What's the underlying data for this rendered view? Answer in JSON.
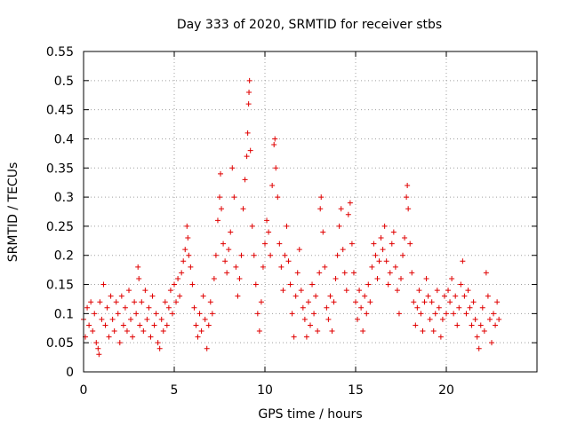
{
  "chart_data": {
    "type": "scatter",
    "title": "Day 333 of 2020, SRMTID for receiver stbs",
    "xlabel": "GPS time / hours",
    "ylabel": "SRMTID / TECUs",
    "xlim": [
      0,
      25
    ],
    "ylim": [
      0,
      0.55
    ],
    "xticks": [
      0,
      5,
      10,
      15,
      20
    ],
    "xtick_labels": [
      "0",
      "5",
      "10",
      "15",
      "20"
    ],
    "yticks": [
      0,
      0.05,
      0.1,
      0.15,
      0.2,
      0.25,
      0.3,
      0.35,
      0.4,
      0.45,
      0.5,
      0.55
    ],
    "ytick_labels": [
      "0",
      "0.05",
      "0.1",
      "0.15",
      "0.2",
      "0.25",
      "0.3",
      "0.35",
      "0.4",
      "0.45",
      "0.5",
      "0.55"
    ],
    "grid": true,
    "marker": "+",
    "marker_color": "#e00000",
    "series": [
      {
        "name": "SRMTID",
        "points": [
          [
            0.0,
            0.09
          ],
          [
            0.1,
            0.06
          ],
          [
            0.2,
            0.11
          ],
          [
            0.3,
            0.08
          ],
          [
            0.4,
            0.12
          ],
          [
            0.5,
            0.07
          ],
          [
            0.6,
            0.1
          ],
          [
            0.7,
            0.05
          ],
          [
            0.8,
            0.04
          ],
          [
            0.85,
            0.03
          ],
          [
            0.9,
            0.12
          ],
          [
            1.0,
            0.09
          ],
          [
            1.1,
            0.15
          ],
          [
            1.2,
            0.08
          ],
          [
            1.3,
            0.11
          ],
          [
            1.4,
            0.06
          ],
          [
            1.5,
            0.13
          ],
          [
            1.6,
            0.09
          ],
          [
            1.7,
            0.07
          ],
          [
            1.8,
            0.12
          ],
          [
            1.9,
            0.1
          ],
          [
            2.0,
            0.05
          ],
          [
            2.1,
            0.13
          ],
          [
            2.2,
            0.08
          ],
          [
            2.3,
            0.11
          ],
          [
            2.4,
            0.07
          ],
          [
            2.5,
            0.14
          ],
          [
            2.6,
            0.09
          ],
          [
            2.7,
            0.06
          ],
          [
            2.8,
            0.12
          ],
          [
            2.9,
            0.1
          ],
          [
            3.0,
            0.18
          ],
          [
            3.05,
            0.16
          ],
          [
            3.1,
            0.08
          ],
          [
            3.2,
            0.12
          ],
          [
            3.3,
            0.07
          ],
          [
            3.4,
            0.14
          ],
          [
            3.5,
            0.09
          ],
          [
            3.6,
            0.11
          ],
          [
            3.7,
            0.06
          ],
          [
            3.8,
            0.13
          ],
          [
            3.9,
            0.08
          ],
          [
            4.0,
            0.1
          ],
          [
            4.1,
            0.05
          ],
          [
            4.2,
            0.04
          ],
          [
            4.3,
            0.09
          ],
          [
            4.4,
            0.07
          ],
          [
            4.5,
            0.12
          ],
          [
            4.6,
            0.08
          ],
          [
            4.7,
            0.11
          ],
          [
            4.8,
            0.14
          ],
          [
            4.9,
            0.1
          ],
          [
            5.0,
            0.15
          ],
          [
            5.1,
            0.12
          ],
          [
            5.2,
            0.16
          ],
          [
            5.3,
            0.13
          ],
          [
            5.4,
            0.17
          ],
          [
            5.5,
            0.19
          ],
          [
            5.6,
            0.21
          ],
          [
            5.7,
            0.25
          ],
          [
            5.75,
            0.23
          ],
          [
            5.8,
            0.2
          ],
          [
            5.9,
            0.18
          ],
          [
            6.0,
            0.15
          ],
          [
            6.1,
            0.11
          ],
          [
            6.2,
            0.08
          ],
          [
            6.3,
            0.06
          ],
          [
            6.4,
            0.1
          ],
          [
            6.5,
            0.07
          ],
          [
            6.6,
            0.13
          ],
          [
            6.7,
            0.09
          ],
          [
            6.8,
            0.04
          ],
          [
            6.9,
            0.08
          ],
          [
            7.0,
            0.12
          ],
          [
            7.1,
            0.1
          ],
          [
            7.2,
            0.16
          ],
          [
            7.3,
            0.2
          ],
          [
            7.4,
            0.26
          ],
          [
            7.5,
            0.3
          ],
          [
            7.55,
            0.34
          ],
          [
            7.6,
            0.28
          ],
          [
            7.7,
            0.22
          ],
          [
            7.8,
            0.19
          ],
          [
            7.9,
            0.17
          ],
          [
            8.0,
            0.21
          ],
          [
            8.1,
            0.24
          ],
          [
            8.2,
            0.35
          ],
          [
            8.3,
            0.3
          ],
          [
            8.4,
            0.18
          ],
          [
            8.5,
            0.13
          ],
          [
            8.6,
            0.16
          ],
          [
            8.7,
            0.2
          ],
          [
            8.8,
            0.28
          ],
          [
            8.9,
            0.33
          ],
          [
            9.0,
            0.37
          ],
          [
            9.05,
            0.41
          ],
          [
            9.1,
            0.46
          ],
          [
            9.12,
            0.48
          ],
          [
            9.15,
            0.5
          ],
          [
            9.2,
            0.38
          ],
          [
            9.3,
            0.25
          ],
          [
            9.4,
            0.2
          ],
          [
            9.5,
            0.15
          ],
          [
            9.6,
            0.1
          ],
          [
            9.7,
            0.07
          ],
          [
            9.8,
            0.12
          ],
          [
            9.9,
            0.18
          ],
          [
            10.0,
            0.22
          ],
          [
            10.1,
            0.26
          ],
          [
            10.2,
            0.24
          ],
          [
            10.3,
            0.2
          ],
          [
            10.4,
            0.32
          ],
          [
            10.5,
            0.39
          ],
          [
            10.55,
            0.4
          ],
          [
            10.6,
            0.35
          ],
          [
            10.7,
            0.3
          ],
          [
            10.8,
            0.22
          ],
          [
            10.9,
            0.18
          ],
          [
            11.0,
            0.14
          ],
          [
            11.1,
            0.2
          ],
          [
            11.2,
            0.25
          ],
          [
            11.3,
            0.19
          ],
          [
            11.4,
            0.15
          ],
          [
            11.5,
            0.1
          ],
          [
            11.6,
            0.06
          ],
          [
            11.7,
            0.13
          ],
          [
            11.8,
            0.17
          ],
          [
            11.9,
            0.21
          ],
          [
            12.0,
            0.14
          ],
          [
            12.1,
            0.11
          ],
          [
            12.2,
            0.09
          ],
          [
            12.3,
            0.06
          ],
          [
            12.4,
            0.12
          ],
          [
            12.5,
            0.08
          ],
          [
            12.6,
            0.15
          ],
          [
            12.7,
            0.1
          ],
          [
            12.8,
            0.13
          ],
          [
            12.9,
            0.07
          ],
          [
            13.0,
            0.17
          ],
          [
            13.05,
            0.28
          ],
          [
            13.1,
            0.3
          ],
          [
            13.2,
            0.24
          ],
          [
            13.3,
            0.18
          ],
          [
            13.4,
            0.11
          ],
          [
            13.5,
            0.09
          ],
          [
            13.6,
            0.13
          ],
          [
            13.7,
            0.07
          ],
          [
            13.8,
            0.12
          ],
          [
            13.9,
            0.16
          ],
          [
            14.0,
            0.2
          ],
          [
            14.1,
            0.25
          ],
          [
            14.2,
            0.28
          ],
          [
            14.3,
            0.21
          ],
          [
            14.4,
            0.17
          ],
          [
            14.5,
            0.14
          ],
          [
            14.6,
            0.27
          ],
          [
            14.7,
            0.29
          ],
          [
            14.8,
            0.22
          ],
          [
            14.9,
            0.17
          ],
          [
            15.0,
            0.12
          ],
          [
            15.1,
            0.09
          ],
          [
            15.2,
            0.14
          ],
          [
            15.3,
            0.11
          ],
          [
            15.4,
            0.07
          ],
          [
            15.5,
            0.13
          ],
          [
            15.6,
            0.1
          ],
          [
            15.7,
            0.15
          ],
          [
            15.8,
            0.12
          ],
          [
            15.9,
            0.18
          ],
          [
            16.0,
            0.22
          ],
          [
            16.1,
            0.2
          ],
          [
            16.2,
            0.16
          ],
          [
            16.3,
            0.19
          ],
          [
            16.4,
            0.23
          ],
          [
            16.5,
            0.21
          ],
          [
            16.6,
            0.25
          ],
          [
            16.7,
            0.19
          ],
          [
            16.8,
            0.15
          ],
          [
            16.9,
            0.17
          ],
          [
            17.0,
            0.22
          ],
          [
            17.1,
            0.24
          ],
          [
            17.2,
            0.18
          ],
          [
            17.3,
            0.14
          ],
          [
            17.4,
            0.1
          ],
          [
            17.5,
            0.16
          ],
          [
            17.6,
            0.2
          ],
          [
            17.7,
            0.23
          ],
          [
            17.8,
            0.3
          ],
          [
            17.85,
            0.32
          ],
          [
            17.9,
            0.28
          ],
          [
            18.0,
            0.22
          ],
          [
            18.1,
            0.17
          ],
          [
            18.2,
            0.12
          ],
          [
            18.3,
            0.08
          ],
          [
            18.4,
            0.11
          ],
          [
            18.5,
            0.14
          ],
          [
            18.6,
            0.1
          ],
          [
            18.7,
            0.07
          ],
          [
            18.8,
            0.12
          ],
          [
            18.9,
            0.16
          ],
          [
            19.0,
            0.13
          ],
          [
            19.1,
            0.09
          ],
          [
            19.2,
            0.12
          ],
          [
            19.3,
            0.07
          ],
          [
            19.4,
            0.1
          ],
          [
            19.5,
            0.14
          ],
          [
            19.6,
            0.11
          ],
          [
            19.7,
            0.06
          ],
          [
            19.8,
            0.09
          ],
          [
            19.9,
            0.13
          ],
          [
            20.0,
            0.1
          ],
          [
            20.1,
            0.14
          ],
          [
            20.2,
            0.12
          ],
          [
            20.3,
            0.16
          ],
          [
            20.4,
            0.1
          ],
          [
            20.5,
            0.13
          ],
          [
            20.6,
            0.08
          ],
          [
            20.7,
            0.11
          ],
          [
            20.8,
            0.15
          ],
          [
            20.9,
            0.19
          ],
          [
            21.0,
            0.13
          ],
          [
            21.1,
            0.1
          ],
          [
            21.2,
            0.14
          ],
          [
            21.3,
            0.11
          ],
          [
            21.4,
            0.08
          ],
          [
            21.5,
            0.12
          ],
          [
            21.6,
            0.09
          ],
          [
            21.7,
            0.06
          ],
          [
            21.8,
            0.04
          ],
          [
            21.9,
            0.08
          ],
          [
            22.0,
            0.11
          ],
          [
            22.1,
            0.07
          ],
          [
            22.2,
            0.17
          ],
          [
            22.3,
            0.13
          ],
          [
            22.4,
            0.09
          ],
          [
            22.5,
            0.05
          ],
          [
            22.6,
            0.1
          ],
          [
            22.7,
            0.08
          ],
          [
            22.8,
            0.12
          ],
          [
            22.9,
            0.09
          ]
        ]
      }
    ]
  }
}
